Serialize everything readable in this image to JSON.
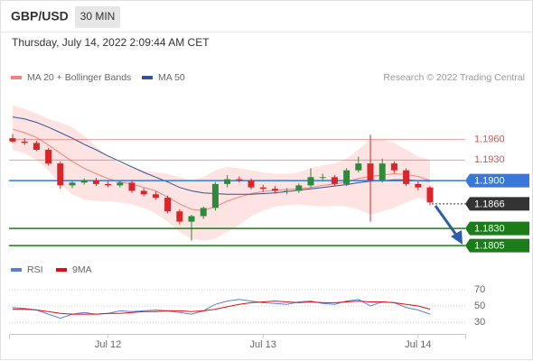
{
  "header": {
    "symbol": "GBP/USD",
    "interval": "30 MIN",
    "timestamp": "Thursday, July 14, 2022 2:09:44 AM CET",
    "credit": "Research © 2022 Trading Central"
  },
  "chart_data": [
    {
      "type": "candlestick",
      "up_color": "#2e8b3a",
      "down_color": "#d9262a",
      "open": [
        1.1962,
        1.1957,
        1.1955,
        1.1945,
        1.1925,
        1.1893,
        1.1897,
        1.19,
        1.1895,
        1.1893,
        1.1897,
        1.1885,
        1.188,
        1.1875,
        1.1855,
        1.184,
        1.1848,
        1.186,
        1.1895,
        1.1902,
        1.19,
        1.189,
        1.1888,
        1.1885,
        1.1885,
        1.1893,
        1.1905,
        1.1905,
        1.1895,
        1.1915,
        1.1925,
        1.19,
        1.1925,
        1.1915,
        1.1895,
        1.189
      ],
      "high": [
        1.1968,
        1.1962,
        1.1958,
        1.1948,
        1.1928,
        1.19,
        1.1903,
        1.1904,
        1.19,
        1.1899,
        1.19,
        1.1889,
        1.1884,
        1.1878,
        1.1858,
        1.185,
        1.1862,
        1.1898,
        1.1908,
        1.1906,
        1.1903,
        1.1894,
        1.1892,
        1.1889,
        1.1896,
        1.1918,
        1.191,
        1.1908,
        1.1918,
        1.1935,
        1.1967,
        1.1932,
        1.1928,
        1.1918,
        1.1899,
        1.1892
      ],
      "low": [
        1.1955,
        1.1952,
        1.1943,
        1.1922,
        1.1888,
        1.1889,
        1.1894,
        1.1892,
        1.189,
        1.189,
        1.1882,
        1.1877,
        1.1872,
        1.1852,
        1.1836,
        1.1812,
        1.1844,
        1.1856,
        1.189,
        1.1897,
        1.1887,
        1.1884,
        1.1881,
        1.188,
        1.1882,
        1.189,
        1.19,
        1.1892,
        1.1892,
        1.1912,
        1.184,
        1.1897,
        1.1911,
        1.1892,
        1.1886,
        1.1864
      ],
      "close": [
        1.1957,
        1.1955,
        1.1945,
        1.1925,
        1.1893,
        1.1897,
        1.19,
        1.1895,
        1.1893,
        1.1897,
        1.1885,
        1.188,
        1.1875,
        1.1855,
        1.184,
        1.1848,
        1.186,
        1.1895,
        1.1902,
        1.19,
        1.189,
        1.1888,
        1.1885,
        1.1885,
        1.1893,
        1.1905,
        1.1905,
        1.1895,
        1.1915,
        1.1925,
        1.19,
        1.1925,
        1.1915,
        1.1895,
        1.189,
        1.1868
      ],
      "series": [
        {
          "name": "MA 20 + Bollinger Bands",
          "color": "#f4837d",
          "band_color": "#fde3e2",
          "values": [
            1.1975,
            1.197,
            1.1963,
            1.1952,
            1.194,
            1.1928,
            1.1918,
            1.191,
            1.1903,
            1.1898,
            1.1895,
            1.189,
            1.1885,
            1.1876,
            1.1866,
            1.1858,
            1.1856,
            1.1862,
            1.187,
            1.1876,
            1.1881,
            1.1884,
            1.1886,
            1.1887,
            1.1888,
            1.189,
            1.1893,
            1.1895,
            1.1898,
            1.1903,
            1.1906,
            1.1908,
            1.191,
            1.1909,
            1.1906,
            1.19
          ],
          "upper": [
            1.201,
            1.2005,
            1.1998,
            1.199,
            1.1985,
            1.1978,
            1.1965,
            1.195,
            1.1935,
            1.1925,
            1.192,
            1.1915,
            1.1912,
            1.191,
            1.1905,
            1.19,
            1.1905,
            1.1915,
            1.192,
            1.1918,
            1.1915,
            1.1912,
            1.191,
            1.191,
            1.1912,
            1.1918,
            1.1922,
            1.1925,
            1.1932,
            1.1945,
            1.196,
            1.196,
            1.1955,
            1.1945,
            1.1935,
            1.193
          ],
          "lower": [
            1.1945,
            1.194,
            1.193,
            1.1915,
            1.1895,
            1.188,
            1.1872,
            1.187,
            1.187,
            1.1868,
            1.1865,
            1.186,
            1.1852,
            1.184,
            1.1825,
            1.1815,
            1.1812,
            1.1815,
            1.1825,
            1.1835,
            1.1848,
            1.1856,
            1.1862,
            1.1864,
            1.1865,
            1.1863,
            1.1862,
            1.1863,
            1.1862,
            1.1858,
            1.185,
            1.1855,
            1.186,
            1.1868,
            1.1875,
            1.187
          ]
        },
        {
          "name": "MA 50",
          "color": "#2f5597",
          "values": [
            1.1993,
            1.199,
            1.1985,
            1.1978,
            1.197,
            1.1962,
            1.1953,
            1.1945,
            1.1936,
            1.1928,
            1.192,
            1.1912,
            1.1905,
            1.1898,
            1.189,
            1.1885,
            1.1882,
            1.1881,
            1.188,
            1.188,
            1.188,
            1.1881,
            1.1882,
            1.1884,
            1.1886,
            1.1888,
            1.189,
            1.1892,
            1.1894,
            1.1897,
            1.1899,
            1.19,
            1.1901,
            1.1901,
            1.19,
            1.1899
          ]
        }
      ],
      "levels": [
        {
          "value": 1.196,
          "label": "1.1960",
          "color": "#e0504a",
          "boxed": false
        },
        {
          "value": 1.193,
          "label": "1.1930",
          "color": "#e0504a",
          "boxed": false
        },
        {
          "value": 1.19,
          "label": "1.1900",
          "color": "#3a78d8",
          "boxed": true
        },
        {
          "value": 1.1866,
          "color": "#333333",
          "boxed": true,
          "dashed": true
        },
        {
          "value": 1.183,
          "label": "1.1830",
          "color": "#1a7d1a",
          "boxed": true
        },
        {
          "value": 1.1805,
          "color": "#1a7d1a",
          "boxed": true
        }
      ],
      "ylim": [
        1.1788,
        1.2032
      ]
    },
    {
      "type": "line",
      "categories": [
        null,
        null,
        null,
        null,
        null,
        null,
        null,
        null,
        "Jul 12",
        null,
        null,
        null,
        null,
        null,
        null,
        null,
        null,
        null,
        null,
        null,
        null,
        "Jul 13",
        null,
        null,
        null,
        null,
        null,
        null,
        null,
        null,
        null,
        null,
        null,
        null,
        "Jul 14",
        null
      ],
      "series": [
        {
          "name": "RSI",
          "color": "#5b7fd6",
          "values": [
            48,
            47,
            45,
            40,
            35,
            40,
            42,
            40,
            41,
            44,
            43,
            44,
            45,
            44,
            42,
            40,
            44,
            52,
            56,
            58,
            56,
            54,
            53,
            52,
            55,
            56,
            53,
            52,
            56,
            58,
            50,
            55,
            54,
            48,
            45,
            40
          ]
        },
        {
          "name": "9MA",
          "color": "#e01010",
          "values": [
            46,
            46,
            45,
            43,
            41,
            40,
            40,
            40,
            41,
            41,
            42,
            43,
            43,
            44,
            44,
            43,
            44,
            46,
            49,
            52,
            54,
            55,
            56,
            55,
            54,
            55,
            54,
            54,
            55,
            56,
            55,
            55,
            54,
            52,
            50,
            46
          ]
        }
      ],
      "ylim": [
        18,
        82
      ],
      "yticks": [
        30,
        50,
        70
      ],
      "grid": true
    }
  ]
}
